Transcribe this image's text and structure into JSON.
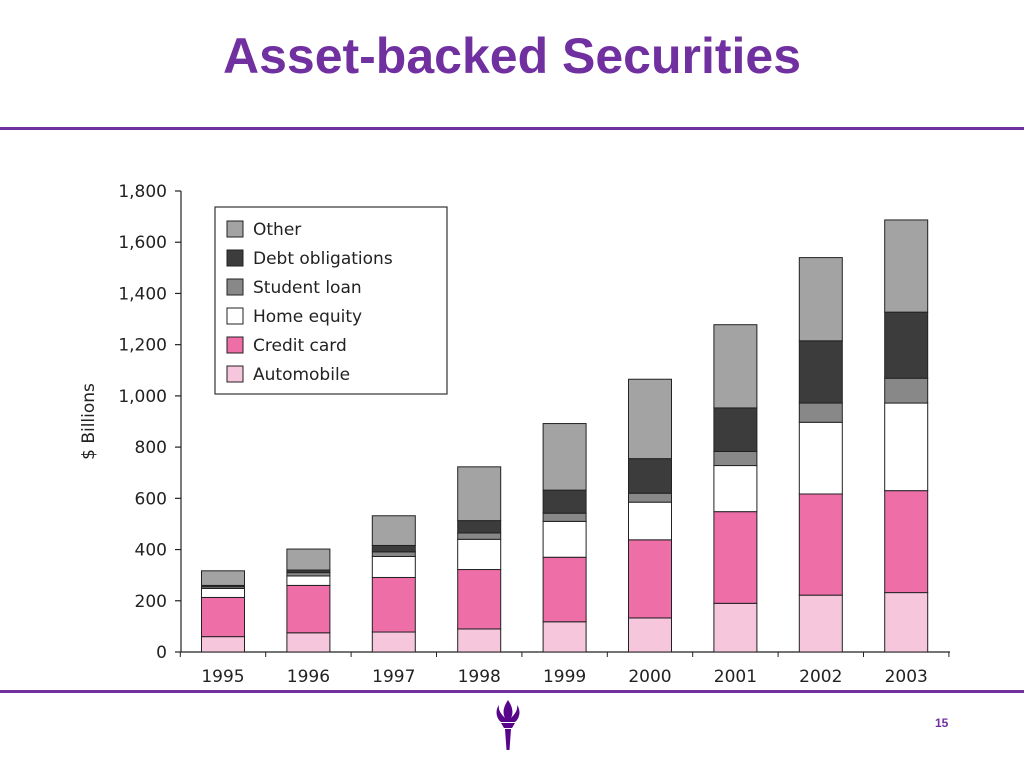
{
  "slide": {
    "title": "Asset-backed Securities",
    "page_number": "15"
  },
  "colors": {
    "title": "#7030a0",
    "rule": "#7030a0"
  },
  "logo": {
    "icon": "torch-icon",
    "color": "#57068c"
  },
  "chart_data": {
    "type": "bar",
    "stacked": true,
    "title": "",
    "xlabel": "",
    "ylabel": "$ Billions",
    "ylim": [
      0,
      1800
    ],
    "yticks": [
      0,
      200,
      400,
      600,
      800,
      1000,
      1200,
      1400,
      1600,
      1800
    ],
    "ytick_labels": [
      "0",
      "200",
      "400",
      "600",
      "800",
      "1,000",
      "1,200",
      "1,400",
      "1,600",
      "1,800"
    ],
    "categories": [
      "1995",
      "1996",
      "1997",
      "1998",
      "1999",
      "2000",
      "2001",
      "2002",
      "2003"
    ],
    "legend_position": "top-left",
    "grid": false,
    "series": [
      {
        "name": "Automobile",
        "color": "#f5c6dc",
        "values": [
          60,
          75,
          78,
          90,
          118,
          133,
          190,
          222,
          232
        ]
      },
      {
        "name": "Credit card",
        "color": "#ee6ea8",
        "values": [
          153,
          185,
          213,
          232,
          252,
          305,
          358,
          395,
          398
        ]
      },
      {
        "name": "Home equity",
        "color": "#ffffff",
        "values": [
          35,
          37,
          82,
          118,
          140,
          147,
          180,
          280,
          342
        ]
      },
      {
        "name": "Student loan",
        "color": "#888888",
        "values": [
          7,
          13,
          18,
          25,
          32,
          35,
          55,
          75,
          97
        ]
      },
      {
        "name": "Debt obligations",
        "color": "#3c3c3c",
        "values": [
          5,
          10,
          25,
          48,
          90,
          135,
          170,
          243,
          258
        ]
      },
      {
        "name": "Other",
        "color": "#a3a3a3",
        "values": [
          57,
          82,
          116,
          210,
          260,
          310,
          325,
          325,
          360
        ]
      }
    ]
  }
}
